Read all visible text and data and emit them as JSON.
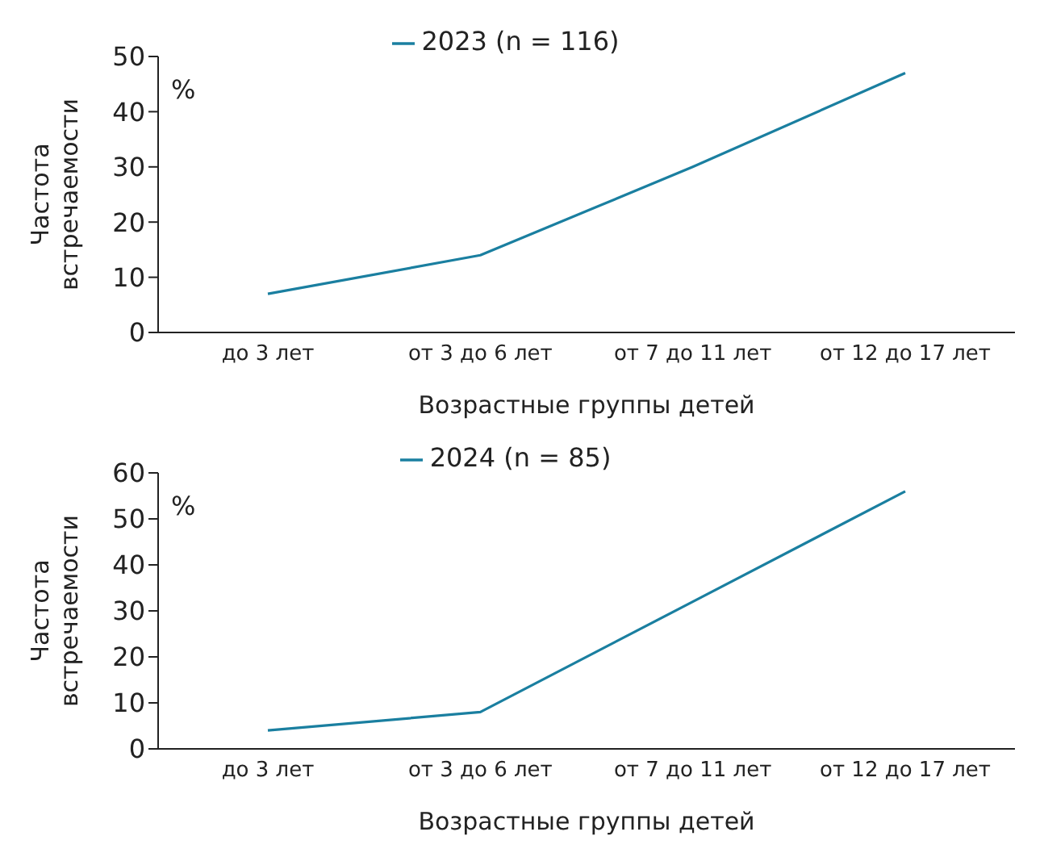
{
  "chart_data": [
    {
      "type": "line",
      "categories": [
        "до 3 лет",
        "от 3 до 6 лет",
        "от 7 до 11 лет",
        "от 12 до 17 лет"
      ],
      "series": [
        {
          "name": "2023 (n = 116)",
          "color": "#1a7fa0",
          "values": [
            7,
            14,
            30,
            47
          ]
        }
      ],
      "ylim": [
        0,
        50
      ],
      "yticks": [
        0,
        10,
        20,
        30,
        40,
        50
      ],
      "xlabel": "Возрастные группы детей",
      "ylabel": "Частота встречаемости",
      "annotations": [
        "%"
      ],
      "legend": "top",
      "marker": "none"
    },
    {
      "type": "line",
      "categories": [
        "до 3 лет",
        "от 3 до 6 лет",
        "от 7 до 11 лет",
        "от 12 до 17 лет"
      ],
      "series": [
        {
          "name": "2024 (n = 85)",
          "color": "#1a7fa0",
          "values": [
            4,
            8,
            32,
            56
          ]
        }
      ],
      "ylim": [
        0,
        60
      ],
      "yticks": [
        0,
        10,
        20,
        30,
        40,
        50,
        60
      ],
      "xlabel": "Возрастные группы детей",
      "ylabel": "Частота встречаемости",
      "annotations": [
        "%"
      ],
      "legend": "top",
      "marker": "none"
    }
  ]
}
